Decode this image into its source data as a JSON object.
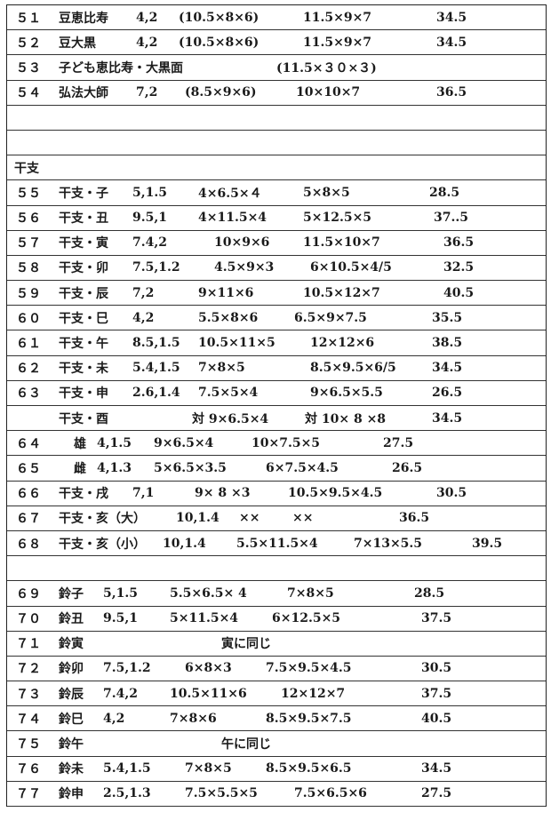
{
  "rows": [
    {
      "no": "５１",
      "name": "豆恵比寿",
      "cells": [
        "4,2",
        "(10.5×8×6)",
        "11.5×9×7",
        "34.5"
      ]
    },
    {
      "no": "５２",
      "name": "豆大黒",
      "cells": [
        "4,2",
        "(10.5×8×6)",
        "11.5×9×7",
        "34.5"
      ]
    },
    {
      "no": "５３",
      "name": "子ども恵比寿・大黒面",
      "cells": [
        "",
        "(11.5×３０×３)",
        "",
        ""
      ]
    },
    {
      "no": "５４",
      "name": "弘法大師",
      "cells": [
        "7,2",
        "(8.5×9×6)",
        "10×10×7",
        "36.5"
      ]
    },
    {
      "no": "",
      "name": "",
      "cells": [
        "",
        "",
        "",
        ""
      ]
    },
    {
      "no": "",
      "name": "",
      "cells": [
        "",
        "",
        "",
        ""
      ]
    },
    {
      "no": "干支",
      "name": "",
      "cells": [
        "",
        "",
        "",
        ""
      ]
    },
    {
      "no": "５５",
      "name": "干支・子",
      "cells": [
        "5,1.5",
        "4×6.5×４",
        "5×8×5",
        "28.5"
      ]
    },
    {
      "no": "５６",
      "name": "干支・丑",
      "cells": [
        "9.5,1",
        "4×11.5×4",
        "5×12.5×5",
        "37..5"
      ]
    },
    {
      "no": "５７",
      "name": "干支・寅",
      "cells": [
        "7.4,2",
        "10×9×6",
        "11.5×10×7",
        "36.5"
      ]
    },
    {
      "no": "５８",
      "name": "干支・卯",
      "cells": [
        "7.5,1.2",
        "4.5×9×3",
        "6×10.5×4/5",
        "32.5"
      ]
    },
    {
      "no": "５９",
      "name": "干支・辰",
      "cells": [
        "7,2",
        "9×11×6",
        "10.5×12×7",
        "40.5"
      ]
    },
    {
      "no": "６０",
      "name": "干支・巳",
      "cells": [
        "4,2",
        "5.5×8×6",
        "6.5×9×7.5",
        "35.5"
      ]
    },
    {
      "no": "６１",
      "name": "干支・午",
      "cells": [
        "8.5,1.5",
        "10.5×11×5",
        "12×12×6",
        "38.5"
      ]
    },
    {
      "no": "６２",
      "name": "干支・未",
      "cells": [
        "5.4,1.5",
        "7×8×5",
        "8.5×9.5×6/5",
        "34.5"
      ]
    },
    {
      "no": "６３",
      "name": "干支・申",
      "cells": [
        "2.6,1.4",
        "7.5×5×4",
        "9×6.5×5.5",
        "26.5"
      ]
    },
    {
      "no": "",
      "name": "干支・酉",
      "cells": [
        "",
        "対 9×6.5×4",
        "対 10× 8 ×8",
        "34.5"
      ]
    },
    {
      "no": "６４",
      "name": "雄",
      "cells": [
        "4,1.5",
        "9×6.5×4",
        "10×7.5×5",
        "27.5"
      ]
    },
    {
      "no": "６５",
      "name": "雌",
      "cells": [
        "4,1.3",
        "5×6.5×3.5",
        "6×7.5×4.5",
        "26.5"
      ]
    },
    {
      "no": "６６",
      "name": "干支・戌",
      "cells": [
        "7,1",
        "9× 8 ×3",
        "10.5×9.5×4.5",
        "30.5"
      ]
    },
    {
      "no": "６７",
      "name": "干支・亥（大）",
      "cells": [
        "10,1.4",
        "××",
        "××",
        "36.5"
      ]
    },
    {
      "no": "６８",
      "name": "干支・亥（小）",
      "cells": [
        "10,1.4",
        "5.5×11.5×4",
        "7×13×5.5",
        "39.5"
      ]
    },
    {
      "no": "",
      "name": "",
      "cells": [
        "",
        "",
        "",
        ""
      ]
    },
    {
      "no": "６９",
      "name": "鈴子",
      "cells": [
        "5,1.5",
        "5.5×6.5× 4",
        "7×8×5",
        "28.5"
      ]
    },
    {
      "no": "７０",
      "name": "鈴丑",
      "cells": [
        "9.5,1",
        "5×11.5×4",
        "6×12.5×5",
        "37.5"
      ]
    },
    {
      "no": "７１",
      "name": "鈴寅",
      "cells": [
        "",
        "寅に同じ",
        "",
        ""
      ]
    },
    {
      "no": "７２",
      "name": "鈴卯",
      "cells": [
        "7.5,1.2",
        "6×8×3",
        "7.5×9.5×4.5",
        "30.5"
      ]
    },
    {
      "no": "７３",
      "name": "鈴辰",
      "cells": [
        "7.4,2",
        "10.5×11×6",
        "12×12×7",
        "37.5"
      ]
    },
    {
      "no": "７４",
      "name": "鈴巳",
      "cells": [
        "4,2",
        "7×8×6",
        "8.5×9.5×7.5",
        "40.5"
      ]
    },
    {
      "no": "７５",
      "name": "鈴午",
      "cells": [
        "",
        "午に同じ",
        "",
        ""
      ]
    },
    {
      "no": "７６",
      "name": "鈴未",
      "cells": [
        "5.4,1.5",
        "7×8×5",
        "8.5×9.5×6.5",
        "34.5"
      ]
    },
    {
      "no": "７７",
      "name": "鈴申",
      "cells": [
        "2.5,1.3",
        "7.5×5.5×5",
        "7.5×6.5×6",
        "27.5"
      ]
    }
  ]
}
